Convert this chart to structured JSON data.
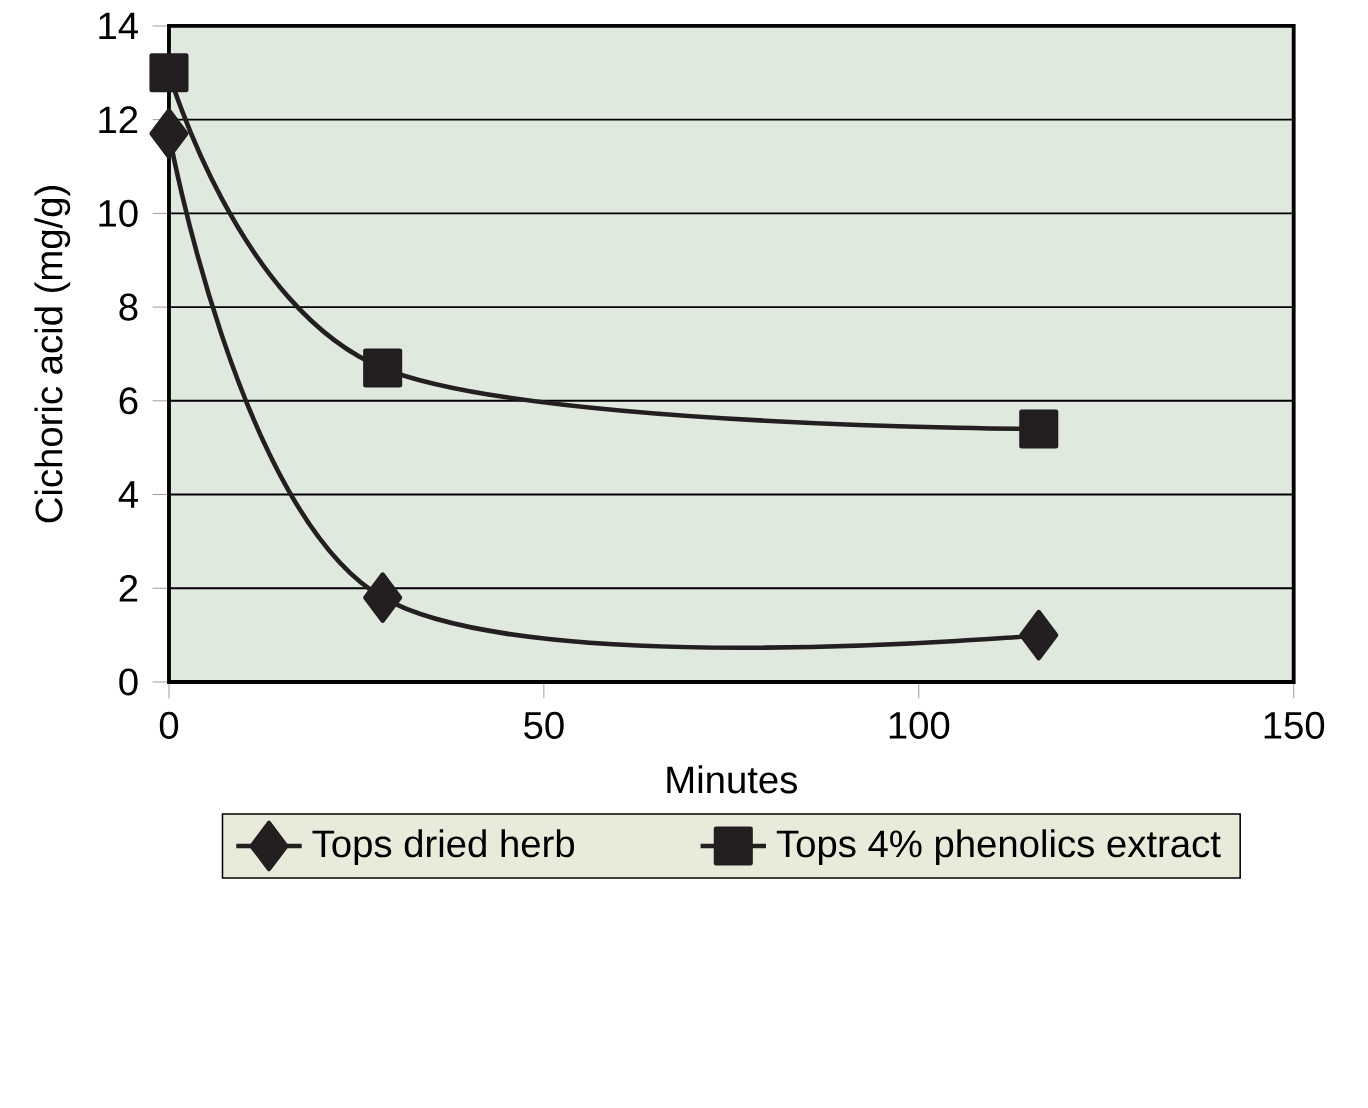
{
  "chart_data": {
    "type": "line",
    "xlabel": "Minutes",
    "ylabel": "Cichoric acid (mg/g)",
    "xlim": [
      0,
      150
    ],
    "xticks": [
      0,
      50,
      100,
      150
    ],
    "ylim": [
      0,
      14
    ],
    "yticks": [
      0,
      2,
      4,
      6,
      8,
      10,
      12,
      14
    ],
    "grid": "y",
    "legend": "bottom",
    "line_style": "solid",
    "series": [
      {
        "name": "Tops dried herb",
        "color": "#231f20",
        "marker": "diamond",
        "x": [
          0,
          28.5,
          116
        ],
        "values": [
          11.7,
          1.8,
          1.0
        ]
      },
      {
        "name": "Tops 4% phenolics extract",
        "color": "#231f20",
        "marker": "square",
        "x": [
          0,
          28.5,
          116
        ],
        "values": [
          13,
          6.7,
          5.4
        ]
      }
    ]
  }
}
